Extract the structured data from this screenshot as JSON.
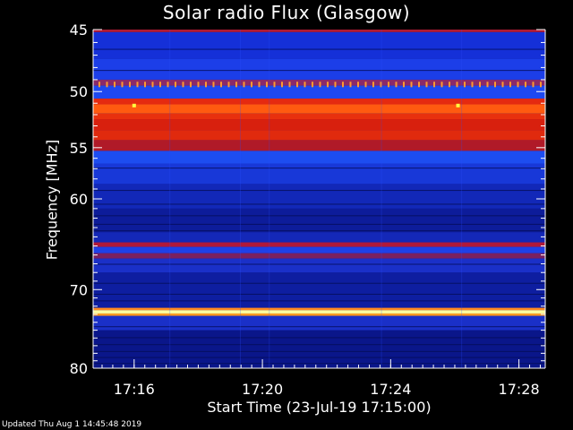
{
  "chart_data": {
    "type": "heatmap",
    "title": "Solar radio Flux (Glasgow)",
    "xlabel": "Start Time (23-Jul-19 17:15:00)",
    "ylabel": "Frequency [MHz]",
    "x_ticks": [
      {
        "minutes": 1,
        "label": "17:16"
      },
      {
        "minutes": 5,
        "label": "17:20"
      },
      {
        "minutes": 9,
        "label": "17:24"
      },
      {
        "minutes": 13,
        "label": "17:28"
      }
    ],
    "y_ticks": [
      45,
      50,
      55,
      60,
      70,
      80
    ],
    "ylim": [
      45,
      80
    ],
    "y_scale": "log",
    "bands": [
      {
        "from": 45.0,
        "to": 45.2,
        "color": "#b01a33"
      },
      {
        "from": 45.2,
        "to": 47.3,
        "color": "#1530d8"
      },
      {
        "from": 47.3,
        "to": 49.0,
        "color": "#1c3ee8"
      },
      {
        "from": 49.0,
        "to": 49.5,
        "color": "#8a2a6a"
      },
      {
        "from": 49.5,
        "to": 50.6,
        "color": "#1e48f0"
      },
      {
        "from": 50.6,
        "to": 51.1,
        "color": "#e52a10"
      },
      {
        "from": 51.1,
        "to": 51.9,
        "color": "#ff5a10"
      },
      {
        "from": 51.9,
        "to": 52.4,
        "color": "#e8300e"
      },
      {
        "from": 52.4,
        "to": 53.4,
        "color": "#d8200e"
      },
      {
        "from": 53.4,
        "to": 54.3,
        "color": "#e02a0e"
      },
      {
        "from": 54.3,
        "to": 55.3,
        "color": "#b01a28"
      },
      {
        "from": 55.3,
        "to": 56.5,
        "color": "#1d4df0"
      },
      {
        "from": 56.5,
        "to": 58.5,
        "color": "#1838d8"
      },
      {
        "from": 58.5,
        "to": 61.0,
        "color": "#1228b8"
      },
      {
        "from": 61.0,
        "to": 63.5,
        "color": "#0d1c9a"
      },
      {
        "from": 63.5,
        "to": 64.6,
        "color": "#1428b8"
      },
      {
        "from": 64.6,
        "to": 65.1,
        "color": "#b0183a"
      },
      {
        "from": 65.1,
        "to": 65.8,
        "color": "#1e40e8"
      },
      {
        "from": 65.8,
        "to": 66.4,
        "color": "#7a2060"
      },
      {
        "from": 66.4,
        "to": 68.0,
        "color": "#1a30c8"
      },
      {
        "from": 68.0,
        "to": 72.2,
        "color": "#0e1ea0"
      },
      {
        "from": 72.2,
        "to": 72.5,
        "color": "#ff8a20"
      },
      {
        "from": 72.5,
        "to": 72.9,
        "color": "#ffffa0"
      },
      {
        "from": 72.9,
        "to": 73.2,
        "color": "#ff9a20"
      },
      {
        "from": 73.2,
        "to": 75.0,
        "color": "#1a30c8"
      },
      {
        "from": 75.0,
        "to": 80.0,
        "color": "#0a168a"
      }
    ],
    "dark_lines": [
      46.5,
      48.2,
      56.9,
      59.1,
      60.5,
      61.7,
      62.6,
      63.3,
      67.0,
      69.2,
      70.5,
      71.3,
      74.5,
      75.9,
      76.8,
      77.7,
      78.5,
      79.3
    ],
    "dotted_row_freq": 49.4,
    "spot_freq": 51.2,
    "spot_minutes": [
      1.0,
      11.1
    ],
    "colors": {
      "background": "#000000",
      "text": "#ffffff"
    }
  },
  "footer": "Updated Thu Aug  1 14:45:48 2019"
}
